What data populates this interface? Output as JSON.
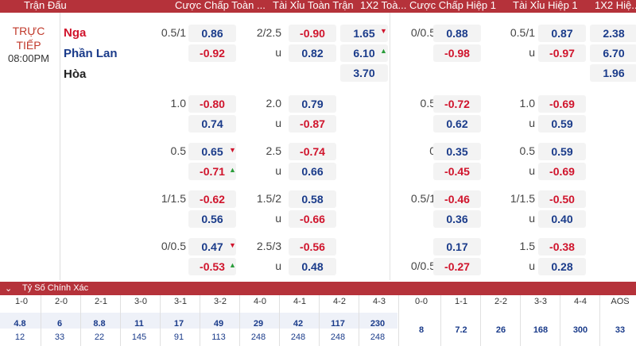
{
  "header": {
    "match": "Trận Đấu",
    "ah_ft": "Cược Chấp Toàn ...",
    "ou_ft": "Tài Xỉu Toàn Trận",
    "x12_ft": "1X2 Toà...",
    "ah_h1": "Cược Chấp Hiệp 1",
    "ou_h1": "Tài Xỉu Hiệp 1",
    "x12_h1": "1X2 Hiệ..."
  },
  "match": {
    "status_line1": "TRỰC",
    "status_line2": "TIẾP",
    "time": "08:00PM",
    "home": "Nga",
    "away": "Phần Lan",
    "draw": "Hòa"
  },
  "colors": {
    "header": "#b5323a",
    "positive": "#1a3b8a",
    "negative": "#d0142c",
    "up": "#2a9d3a",
    "down": "#d0142c"
  },
  "rows": [
    {
      "ah_line": "0.5/1",
      "ah_home": "0.86",
      "ah_away": "-0.92",
      "ou_line": "2/2.5",
      "ou_over": "-0.90",
      "ou_u": "u",
      "ou_under": "0.82",
      "x1": "1.65",
      "x2": "6.10",
      "xd": "3.70",
      "h_ah_line": "0/0.5",
      "h_ah_home": "0.88",
      "h_ah_away": "-0.98",
      "h_ou_line": "0.5/1",
      "h_ou_over": "0.87",
      "h_ou_u": "u",
      "h_ou_under": "-0.97",
      "h_x1": "2.38",
      "h_x2": "6.70",
      "h_xd": "1.96"
    },
    {
      "ah_line": "1.0",
      "ah_home": "-0.80",
      "ah_away": "0.74",
      "ou_line": "2.0",
      "ou_over": "0.79",
      "ou_u": "u",
      "ou_under": "-0.87",
      "h_ah_line": "0.5",
      "h_ah_home": "-0.72",
      "h_ah_away": "0.62",
      "h_ou_line": "1.0",
      "h_ou_over": "-0.69",
      "h_ou_u": "u",
      "h_ou_under": "0.59"
    },
    {
      "ah_line": "0.5",
      "ah_home": "0.65",
      "ah_away": "-0.71",
      "ou_line": "2.5",
      "ou_over": "-0.74",
      "ou_u": "u",
      "ou_under": "0.66",
      "h_ah_line": "0",
      "h_ah_home": "0.35",
      "h_ah_away": "-0.45",
      "h_ou_line": "0.5",
      "h_ou_over": "0.59",
      "h_ou_u": "u",
      "h_ou_under": "-0.69"
    },
    {
      "ah_line": "1/1.5",
      "ah_home": "-0.62",
      "ah_away": "0.56",
      "ou_line": "1.5/2",
      "ou_over": "0.58",
      "ou_u": "u",
      "ou_under": "-0.66",
      "h_ah_line": "0.5/1",
      "h_ah_home": "-0.46",
      "h_ah_away": "0.36",
      "h_ou_line": "1/1.5",
      "h_ou_over": "-0.50",
      "h_ou_u": "u",
      "h_ou_under": "0.40"
    },
    {
      "ah_line": "0/0.5",
      "ah_home": "0.47",
      "ah_away": "-0.53",
      "ou_line": "2.5/3",
      "ou_over": "-0.56",
      "ou_u": "u",
      "ou_under": "0.48",
      "h_ah_home": "0.17",
      "h_ah_away": "-0.27",
      "h_ou_line": "1.5",
      "h_ou_over": "-0.38",
      "h_ou_u": "u",
      "h_ou_under": "0.28",
      "h_ah_line2": "0/0.5"
    }
  ],
  "correct_score": {
    "title": "Tỷ Số Chính Xác",
    "toggle": "chevron-down-icon",
    "scores": [
      "1-0",
      "2-0",
      "2-1",
      "3-0",
      "3-1",
      "3-2",
      "4-0",
      "4-1",
      "4-2",
      "4-3",
      "0-0",
      "1-1",
      "2-2",
      "3-3",
      "4-4",
      "AOS"
    ],
    "home_odds": [
      "4.8",
      "6",
      "8.8",
      "11",
      "17",
      "49",
      "29",
      "42",
      "117",
      "230"
    ],
    "away_odds": [
      "12",
      "33",
      "22",
      "145",
      "91",
      "113",
      "248",
      "248",
      "248",
      "248"
    ],
    "draw_odds": [
      "8",
      "7.2",
      "26",
      "168",
      "300",
      "33"
    ]
  }
}
